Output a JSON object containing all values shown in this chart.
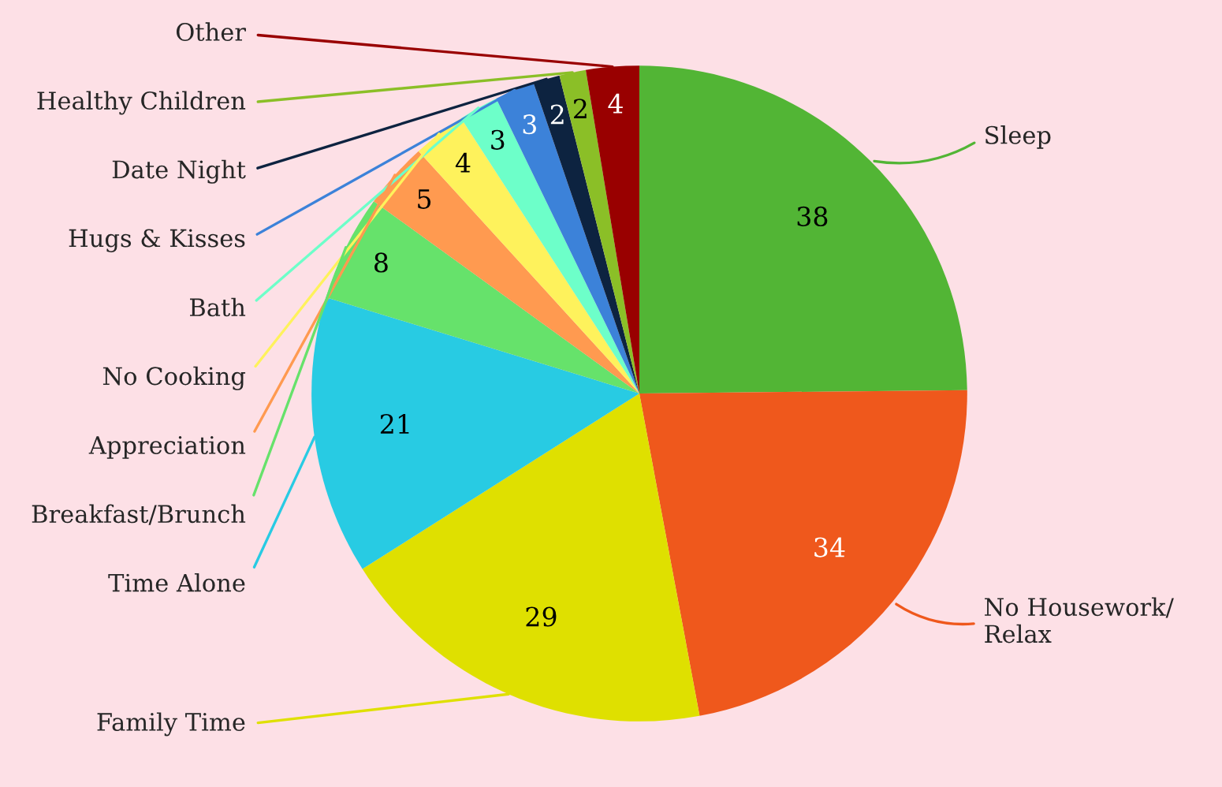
{
  "chart_data": {
    "type": "pie",
    "categories": [
      "Sleep",
      "No Housework/\nRelax",
      "Family Time",
      "Time Alone",
      "Breakfast/Brunch",
      "Appreciation",
      "No Cooking",
      "Bath",
      "Hugs & Kisses",
      "Date Night",
      "Healthy Children",
      "Other"
    ],
    "values": [
      38,
      34,
      29,
      21,
      8,
      5,
      4,
      3,
      3,
      2,
      2,
      4
    ],
    "colors": [
      "#52b535",
      "#ef581c",
      "#dfe000",
      "#28cbe3",
      "#66e26b",
      "#ff9a50",
      "#fef25c",
      "#6dffc9",
      "#3c82d9",
      "#0d2340",
      "#8bbf27",
      "#990000"
    ],
    "data_labels": true
  }
}
